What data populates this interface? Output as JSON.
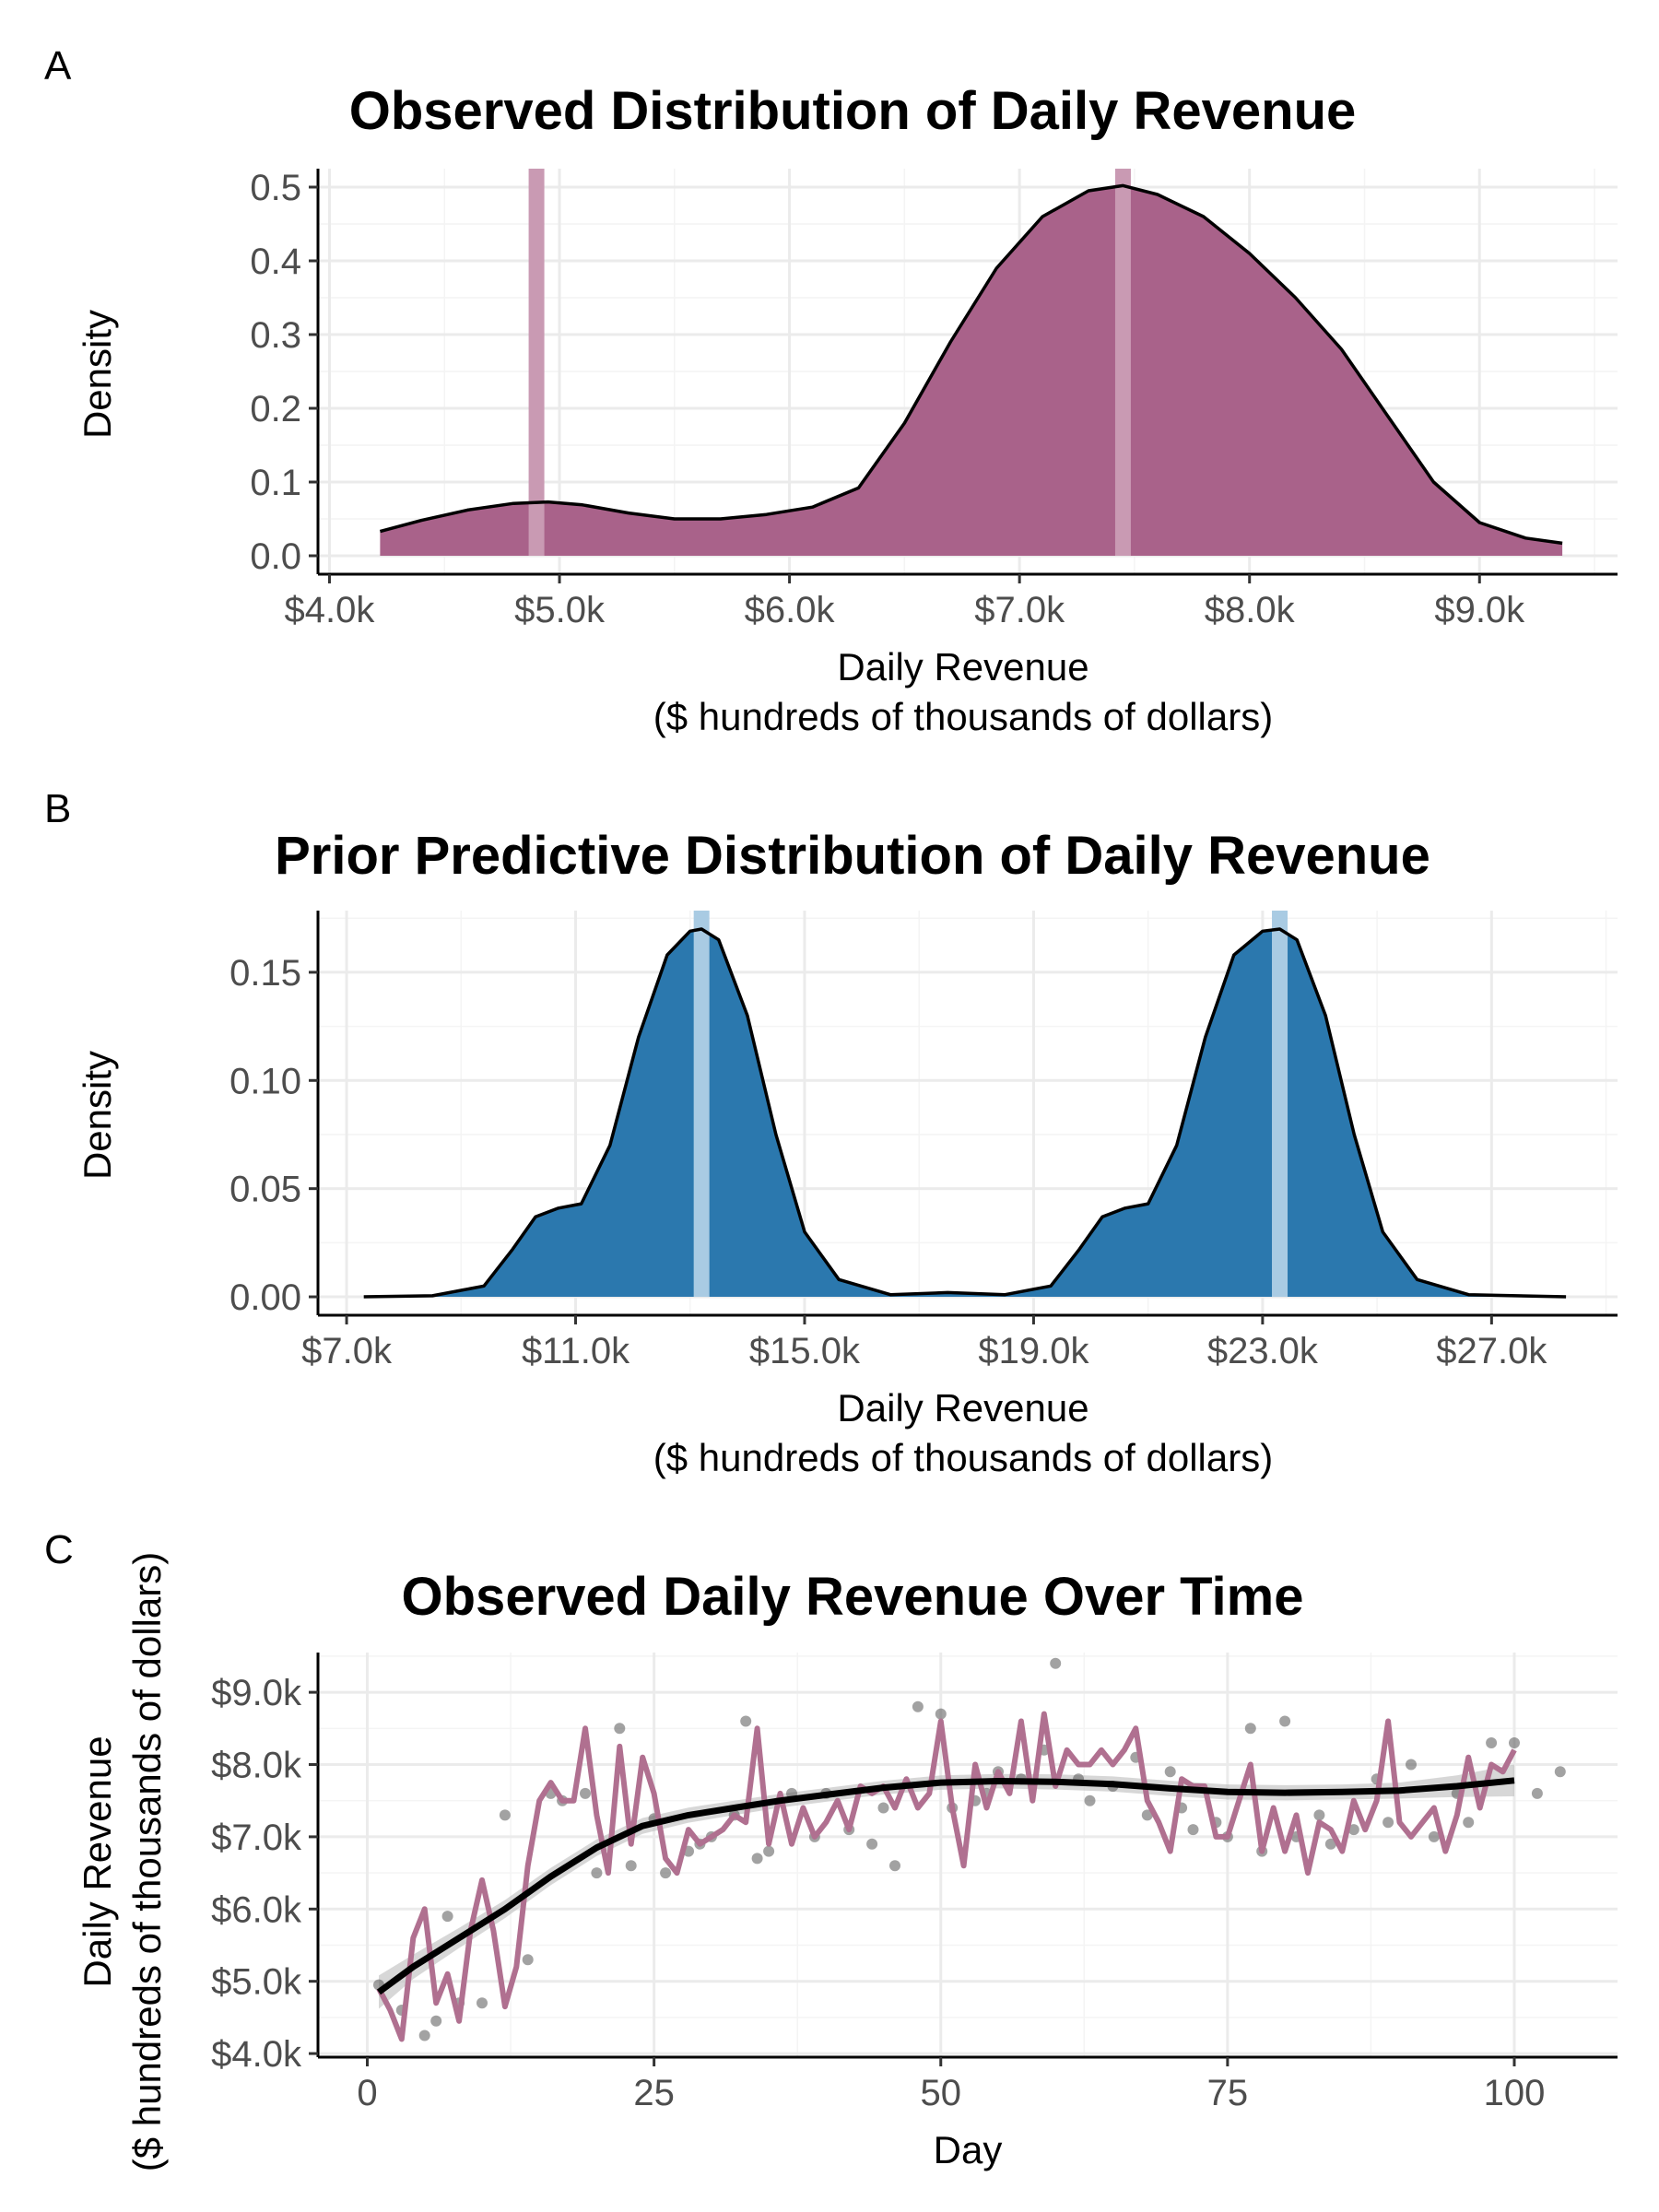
{
  "colors": {
    "observed_fill": "#a9628a",
    "observed_vline": "#c99ab3",
    "prior_fill": "#2b78ae",
    "prior_vline": "#a9cbe3",
    "line_series": "#b07090",
    "smooth": "#000000",
    "ribbon": "#bdbdbd",
    "points": "#555555"
  },
  "chart_data": [
    {
      "panel": "A",
      "type": "area",
      "title": "Observed Distribution of Daily Revenue",
      "xlabel_line1": "Daily Revenue",
      "xlabel_line2": "($ hundreds of thousands of dollars)",
      "ylabel": "Density",
      "xlim": [
        3950,
        9600
      ],
      "ylim": [
        -0.025,
        0.525
      ],
      "x_ticks": [
        4000,
        5000,
        6000,
        7000,
        8000,
        9000
      ],
      "x_tick_labels": [
        "$4.0k",
        "$5.0k",
        "$6.0k",
        "$7.0k",
        "$8.0k",
        "$9.0k"
      ],
      "y_ticks": [
        0.0,
        0.1,
        0.2,
        0.3,
        0.4,
        0.5
      ],
      "y_tick_labels": [
        "0.0",
        "0.1",
        "0.2",
        "0.3",
        "0.4",
        "0.5"
      ],
      "vlines": [
        4900,
        7450
      ],
      "density": {
        "x": [
          4220,
          4400,
          4600,
          4800,
          4950,
          5100,
          5300,
          5500,
          5700,
          5900,
          6100,
          6300,
          6500,
          6700,
          6900,
          7100,
          7300,
          7450,
          7600,
          7800,
          8000,
          8200,
          8400,
          8600,
          8800,
          9000,
          9200,
          9360
        ],
        "y": [
          0.033,
          0.048,
          0.062,
          0.071,
          0.073,
          0.069,
          0.058,
          0.05,
          0.05,
          0.056,
          0.066,
          0.092,
          0.18,
          0.29,
          0.39,
          0.46,
          0.495,
          0.502,
          0.49,
          0.46,
          0.41,
          0.35,
          0.28,
          0.19,
          0.1,
          0.045,
          0.024,
          0.017
        ]
      }
    },
    {
      "panel": "B",
      "type": "area",
      "title": "Prior Predictive Distribution of Daily Revenue",
      "xlabel_line1": "Daily Revenue",
      "xlabel_line2": "($ hundreds of thousands of dollars)",
      "ylabel": "Density",
      "xlim": [
        6500,
        29200
      ],
      "ylim": [
        -0.0085,
        0.1785
      ],
      "x_ticks": [
        7000,
        11000,
        15000,
        19000,
        23000,
        27000
      ],
      "x_tick_labels": [
        "$7.0k",
        "$11.0k",
        "$15.0k",
        "$19.0k",
        "$23.0k",
        "$27.0k"
      ],
      "y_ticks": [
        0.0,
        0.05,
        0.1,
        0.15
      ],
      "y_tick_labels": [
        "0.00",
        "0.05",
        "0.10",
        "0.15"
      ],
      "vlines": [
        13200,
        23300
      ],
      "density": {
        "x": [
          7300,
          8500,
          9400,
          9900,
          10300,
          10700,
          11100,
          11600,
          12100,
          12600,
          13000,
          13200,
          13500,
          14000,
          14500,
          15000,
          15600,
          16500,
          17500,
          18500,
          19300,
          19800,
          20200,
          20600,
          21000,
          21500,
          22000,
          22500,
          23000,
          23300,
          23600,
          24100,
          24600,
          25100,
          25700,
          26600,
          28300
        ],
        "y": [
          0.0,
          0.0005,
          0.005,
          0.022,
          0.037,
          0.041,
          0.043,
          0.07,
          0.12,
          0.158,
          0.169,
          0.17,
          0.165,
          0.13,
          0.075,
          0.03,
          0.008,
          0.001,
          0.002,
          0.001,
          0.005,
          0.022,
          0.037,
          0.041,
          0.043,
          0.07,
          0.12,
          0.158,
          0.169,
          0.17,
          0.165,
          0.13,
          0.075,
          0.03,
          0.008,
          0.001,
          0.0
        ]
      }
    },
    {
      "panel": "C",
      "type": "line",
      "title": "Observed Daily Revenue Over Time",
      "xlabel": "Day",
      "ylabel_line1": "Daily Revenue",
      "ylabel_line2": "($ hundreds of thousands of dollars)",
      "xlim": [
        -4.3,
        109
      ],
      "ylim": [
        3950,
        9550
      ],
      "x_ticks": [
        0,
        25,
        50,
        75,
        100
      ],
      "x_tick_labels": [
        "0",
        "25",
        "50",
        "75",
        "100"
      ],
      "y_ticks": [
        4000,
        5000,
        6000,
        7000,
        8000,
        9000
      ],
      "y_tick_labels": [
        "$4.0k",
        "$5.0k",
        "$6.0k",
        "$7.0k",
        "$8.0k",
        "$9.0k"
      ],
      "line": {
        "x": [
          1,
          2,
          3,
          4,
          5,
          6,
          7,
          8,
          9,
          10,
          11,
          12,
          13,
          14,
          15,
          16,
          17,
          18,
          19,
          20,
          21,
          22,
          23,
          24,
          25,
          26,
          27,
          28,
          29,
          30,
          31,
          32,
          33,
          34,
          35,
          36,
          37,
          38,
          39,
          40,
          41,
          42,
          43,
          44,
          45,
          46,
          47,
          48,
          49,
          50,
          51,
          52,
          53,
          54,
          55,
          56,
          57,
          58,
          59,
          60,
          61,
          62,
          63,
          64,
          65,
          66,
          67,
          68,
          69,
          70,
          71,
          72,
          73,
          74,
          75,
          76,
          77,
          78,
          79,
          80,
          81,
          82,
          83,
          84,
          85,
          86,
          87,
          88,
          89,
          90,
          91,
          92,
          93,
          94,
          95,
          96,
          97,
          98,
          99,
          100
        ],
        "y": [
          4900,
          4600,
          4200,
          5600,
          6000,
          4700,
          5100,
          4450,
          5700,
          6400,
          5700,
          4650,
          5200,
          6600,
          7500,
          7750,
          7500,
          7500,
          8500,
          7300,
          6500,
          8250,
          6900,
          8100,
          7600,
          6700,
          6500,
          7100,
          6900,
          7000,
          7100,
          7300,
          7200,
          8500,
          6900,
          7600,
          6900,
          7400,
          7000,
          7200,
          7500,
          7100,
          7700,
          7600,
          7700,
          7400,
          7800,
          7400,
          7600,
          8600,
          7400,
          6600,
          8000,
          7400,
          7900,
          7600,
          8600,
          7500,
          8700,
          7700,
          8200,
          8000,
          8000,
          8200,
          8000,
          8200,
          8500,
          7500,
          7200,
          6800,
          7800,
          7700,
          7700,
          7000,
          7000,
          7500,
          8000,
          6800,
          7400,
          6800,
          7300,
          6500,
          7200,
          7100,
          6800,
          7500,
          7100,
          7500,
          8600,
          7200,
          7000,
          7200,
          7400,
          6800,
          7300,
          8100,
          7400,
          8000,
          7900,
          8200
        ]
      },
      "points": {
        "x": [
          1,
          3,
          5,
          6,
          7,
          8,
          10,
          12,
          14,
          16,
          17,
          19,
          20,
          22,
          23,
          25,
          26,
          28,
          29,
          30,
          32,
          33,
          34,
          35,
          37,
          39,
          40,
          42,
          44,
          45,
          46,
          48,
          50,
          51,
          53,
          54,
          55,
          57,
          59,
          60,
          62,
          63,
          65,
          67,
          68,
          70,
          71,
          72,
          74,
          75,
          77,
          78,
          80,
          81,
          83,
          84,
          86,
          88,
          89,
          91,
          93,
          95,
          96,
          98,
          100,
          102,
          104
        ],
        "y": [
          4950,
          4600,
          4250,
          4450,
          5900,
          4700,
          4700,
          7300,
          5300,
          7600,
          7500,
          7600,
          6500,
          8500,
          6600,
          7250,
          6500,
          6800,
          6900,
          7000,
          7300,
          8600,
          6700,
          6800,
          7600,
          7000,
          7600,
          7100,
          6900,
          7400,
          6600,
          8800,
          8700,
          7400,
          7500,
          7600,
          7900,
          7800,
          8200,
          9400,
          7800,
          7500,
          7700,
          8100,
          7300,
          7900,
          7400,
          7100,
          7200,
          7000,
          8500,
          6800,
          8600,
          7000,
          7300,
          6900,
          7100,
          7800,
          7200,
          8000,
          7000,
          7600,
          7200,
          8300,
          8300,
          7600,
          7900
        ]
      },
      "smooth": {
        "x": [
          1,
          4,
          8,
          12,
          16,
          20,
          24,
          28,
          32,
          36,
          40,
          45,
          50,
          55,
          60,
          65,
          70,
          75,
          80,
          85,
          90,
          95,
          100
        ],
        "y": [
          4850,
          5200,
          5600,
          6000,
          6450,
          6850,
          7150,
          7300,
          7400,
          7500,
          7580,
          7680,
          7750,
          7770,
          7760,
          7730,
          7670,
          7620,
          7610,
          7620,
          7640,
          7700,
          7780
        ],
        "se": [
          230,
          170,
          140,
          125,
          120,
          115,
          110,
          105,
          100,
          95,
          95,
          95,
          100,
          100,
          105,
          105,
          105,
          105,
          105,
          105,
          110,
          150,
          220
        ]
      }
    }
  ]
}
